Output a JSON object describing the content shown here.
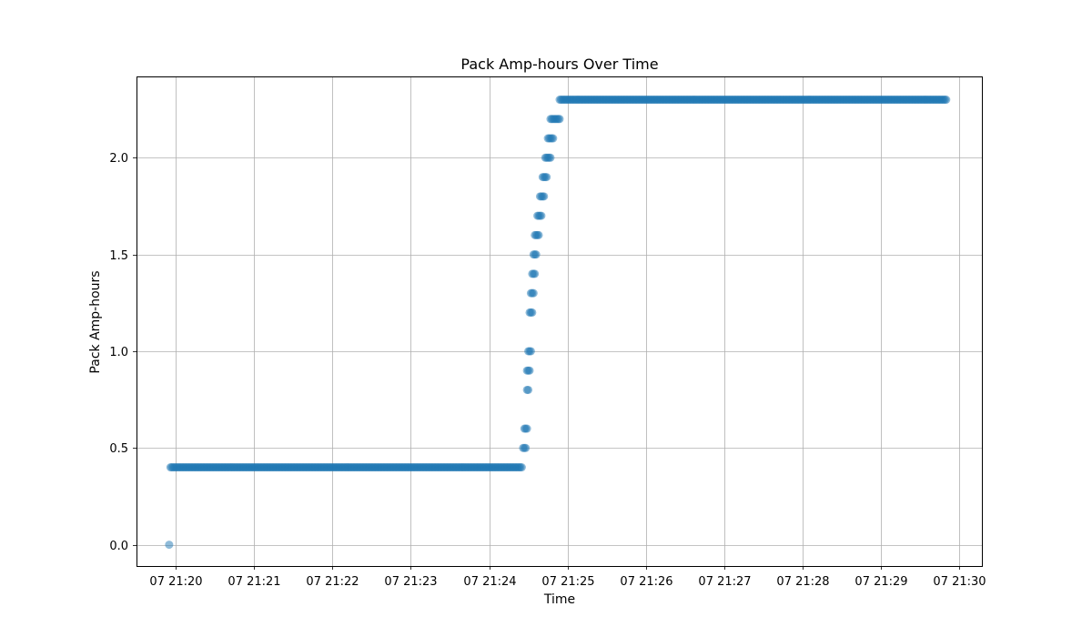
{
  "chart_data": {
    "type": "scatter",
    "title": "Pack Amp-hours Over Time",
    "xlabel": "Time",
    "ylabel": "Pack Amp-hours",
    "x_unit": "time (HH:MM on day 07)",
    "xlim": [
      "21:19.5",
      "21:30.3"
    ],
    "ylim": [
      -0.11,
      2.42
    ],
    "x_ticks": [
      "07 21:20",
      "07 21:21",
      "07 21:22",
      "07 21:23",
      "07 21:24",
      "07 21:25",
      "07 21:26",
      "07 21:27",
      "07 21:28",
      "07 21:29",
      "07 21:30"
    ],
    "y_ticks": [
      "0.0",
      "0.5",
      "1.0",
      "1.5",
      "2.0"
    ],
    "grid": true,
    "marker_color": "#1f77b4",
    "marker_alpha": 0.5,
    "series": [
      {
        "segments": [
          {
            "kind": "point",
            "x": "21:19:55",
            "y": 0.0
          },
          {
            "kind": "run",
            "x_start": "21:19:56",
            "x_end": "21:24:25",
            "y": 0.4
          },
          {
            "kind": "run",
            "x_start": "21:24:26",
            "x_end": "21:24:28",
            "y": 0.5
          },
          {
            "kind": "run",
            "x_start": "21:24:27",
            "x_end": "21:24:29",
            "y": 0.6
          },
          {
            "kind": "run",
            "x_start": "21:24:29",
            "x_end": "21:24:30",
            "y": 0.8
          },
          {
            "kind": "run",
            "x_start": "21:24:29",
            "x_end": "21:24:31",
            "y": 0.9
          },
          {
            "kind": "run",
            "x_start": "21:24:30",
            "x_end": "21:24:32",
            "y": 1.0
          },
          {
            "kind": "run",
            "x_start": "21:24:31",
            "x_end": "21:24:33",
            "y": 1.2
          },
          {
            "kind": "run",
            "x_start": "21:24:32",
            "x_end": "21:24:34",
            "y": 1.3
          },
          {
            "kind": "run",
            "x_start": "21:24:33",
            "x_end": "21:24:35",
            "y": 1.4
          },
          {
            "kind": "run",
            "x_start": "21:24:34",
            "x_end": "21:24:36",
            "y": 1.5
          },
          {
            "kind": "run",
            "x_start": "21:24:35",
            "x_end": "21:24:38",
            "y": 1.6
          },
          {
            "kind": "run",
            "x_start": "21:24:37",
            "x_end": "21:24:40",
            "y": 1.7
          },
          {
            "kind": "run",
            "x_start": "21:24:39",
            "x_end": "21:24:42",
            "y": 1.8
          },
          {
            "kind": "run",
            "x_start": "21:24:41",
            "x_end": "21:24:44",
            "y": 1.9
          },
          {
            "kind": "run",
            "x_start": "21:24:43",
            "x_end": "21:24:47",
            "y": 2.0
          },
          {
            "kind": "run",
            "x_start": "21:24:45",
            "x_end": "21:24:49",
            "y": 2.1
          },
          {
            "kind": "run",
            "x_start": "21:24:47",
            "x_end": "21:24:54",
            "y": 2.2
          },
          {
            "kind": "run",
            "x_start": "21:24:54",
            "x_end": "21:29:50",
            "y": 2.3
          }
        ]
      }
    ]
  }
}
